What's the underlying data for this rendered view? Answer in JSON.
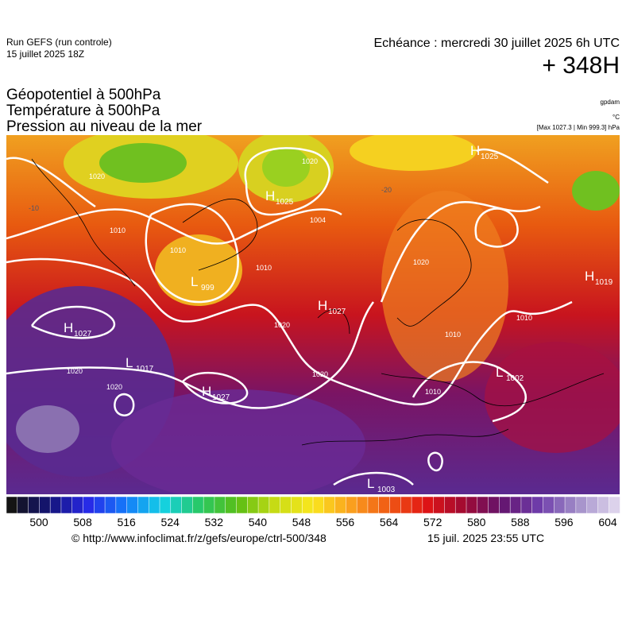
{
  "header": {
    "run": "Run GEFS (run controle)",
    "run_date": "15 juillet 2025 18Z",
    "echeance": "Echéance : mercredi 30 juillet 2025 6h UTC",
    "lead": "+ 348H"
  },
  "titles": [
    "Géopotentiel à 500hPa",
    "Température à 500hPa",
    "Pression au niveau de la mer"
  ],
  "units": {
    "geopotential": "gpdam",
    "temperature": "°C",
    "pressure": "[Max 1027.3 | Min 999.3] hPa"
  },
  "centers": [
    {
      "letter": "H",
      "value": "1025"
    },
    {
      "letter": "L",
      "value": "999"
    },
    {
      "letter": "H",
      "value": "1027"
    },
    {
      "letter": "H",
      "value": "1027"
    },
    {
      "letter": "L",
      "value": "1017"
    },
    {
      "letter": "H",
      "value": "1027"
    },
    {
      "letter": "L",
      "value": "1002"
    },
    {
      "letter": "L",
      "value": "1003"
    },
    {
      "letter": "H",
      "value": "1019"
    },
    {
      "letter": "H",
      "value": "1025"
    }
  ],
  "contour_labels": [
    "1020",
    "1010",
    "1010",
    "1010",
    "1004",
    "1020",
    "1020",
    "1020",
    "1020",
    "1020",
    "1010",
    "1010",
    "1020",
    "1010",
    "-20",
    "-10"
  ],
  "colorbar": {
    "ticks": [
      500,
      508,
      516,
      524,
      532,
      540,
      548,
      556,
      564,
      572,
      580,
      588,
      596,
      604
    ]
  },
  "footer": {
    "source": "© http://www.infoclimat.fr/z/gefs/europe/ctrl-500/348",
    "generated": "15 juil. 2025 23:55 UTC"
  }
}
